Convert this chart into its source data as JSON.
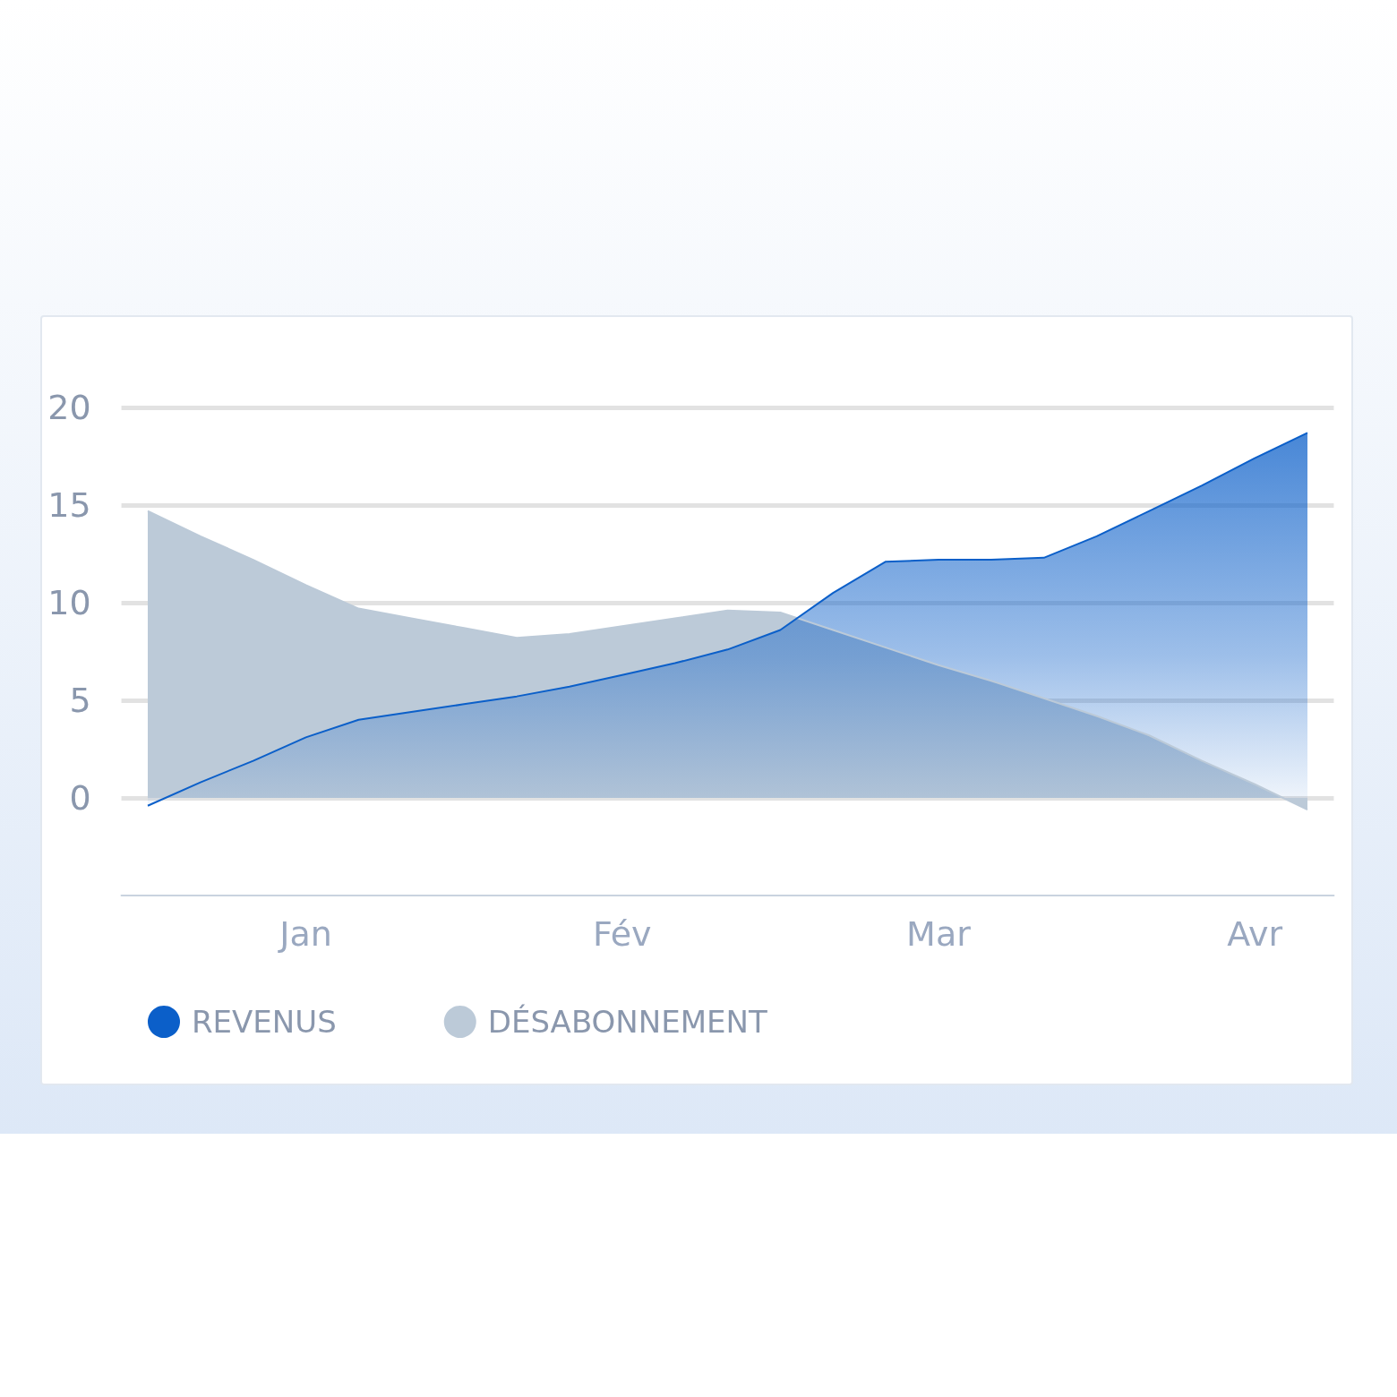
{
  "chart_data": {
    "type": "area",
    "categories": [
      null,
      null,
      null,
      "Jan",
      null,
      null,
      null,
      null,
      null,
      "Fév",
      null,
      null,
      null,
      null,
      null,
      "Mar",
      null,
      null,
      null,
      null,
      null,
      "Avr",
      null
    ],
    "ylim": [
      -5,
      20
    ],
    "yticks": [
      0,
      5,
      10,
      15,
      20
    ],
    "grid": "y",
    "legend": "bottom left",
    "marker": "none",
    "series": [
      {
        "name": "DÉSABONNEMENT",
        "color": "#bccad8",
        "values": [
          14.7,
          13.4,
          12.2,
          10.9,
          9.7,
          9.2,
          8.7,
          8.2,
          8.4,
          8.8,
          9.2,
          9.6,
          9.5,
          8.6,
          7.7,
          6.8,
          6.0,
          5.1,
          4.2,
          3.2,
          1.9,
          0.7,
          -0.6
        ]
      },
      {
        "name": "REVENUS",
        "color": "#0b5fc9",
        "values": [
          -0.4,
          0.8,
          1.9,
          3.1,
          4.0,
          4.4,
          4.8,
          5.2,
          5.7,
          6.3,
          6.9,
          7.6,
          8.6,
          10.5,
          12.1,
          12.2,
          12.2,
          12.3,
          13.4,
          14.7,
          16.0,
          17.4,
          18.7
        ]
      }
    ]
  }
}
